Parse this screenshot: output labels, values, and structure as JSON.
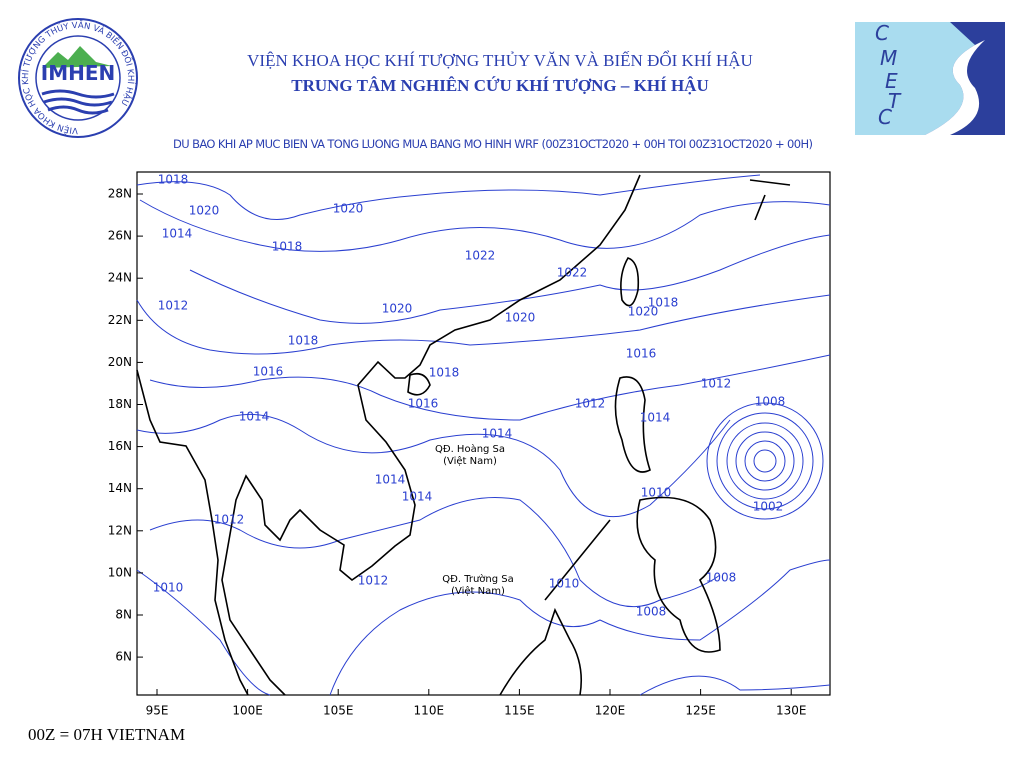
{
  "header": {
    "institute": "VIỆN KHOA HỌC KHÍ TƯỢNG THỦY VĂN VÀ BIẾN ĐỔI KHÍ HẬU",
    "center": "TRUNG TÂM NGHIÊN CỨU KHÍ TƯỢNG – KHÍ HẬU",
    "subtitle": "DU BAO KHI AP MUC BIEN VA TONG LUONG MUA BANG MO HINH WRF (00Z31OCT2020 + 00H TOI 00Z31OCT2020 + 00H)"
  },
  "logo": {
    "ring_text": "VIỆN KHOA HỌC KHÍ TƯỢNG THỦY VĂN VÀ BIẾN ĐỔI KHÍ HẬU",
    "name": "IMHEN"
  },
  "logo2": {
    "letters": [
      "C",
      "M",
      "E",
      "T",
      "C"
    ]
  },
  "map": {
    "lat_labels": [
      "28N",
      "26N",
      "24N",
      "22N",
      "20N",
      "18N",
      "16N",
      "14N",
      "12N",
      "10N",
      "8N",
      "6N"
    ],
    "lon_labels": [
      "95E",
      "100E",
      "105E",
      "110E",
      "115E",
      "120E",
      "125E",
      "130E"
    ],
    "isobar_labels": [
      1018,
      1020,
      1014,
      1018,
      1020,
      1022,
      1022,
      1012,
      1020,
      1020,
      1018,
      1020,
      1018,
      1016,
      1016,
      1018,
      1012,
      1016,
      1012,
      1014,
      1014,
      1014,
      1008,
      1014,
      1014,
      1010,
      1002,
      1012,
      1012,
      1010,
      1008,
      1010,
      1008
    ],
    "places": [
      [
        "QĐ. Hoàng Sa",
        "(Việt Nam)"
      ],
      [
        "QĐ. Trường Sa",
        "(Việt Nam)"
      ]
    ]
  },
  "footer": "00Z = 07H VIETNAM"
}
